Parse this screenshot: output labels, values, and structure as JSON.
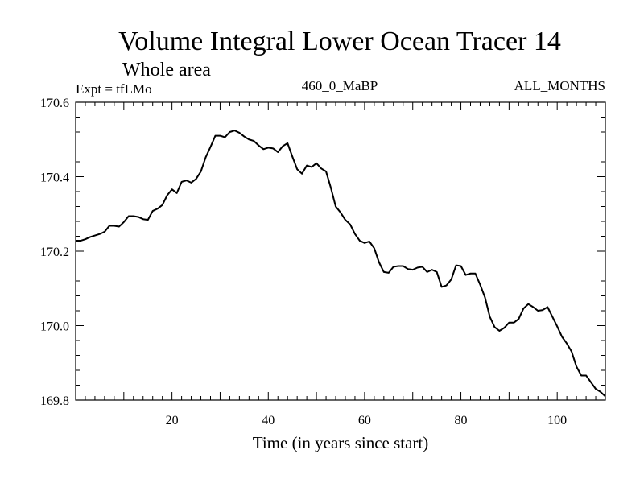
{
  "chart_data": {
    "type": "line",
    "title": "Volume Integral Lower Ocean Tracer 14",
    "subtitle": "Whole area",
    "experiment_label": "Expt = tfLMo",
    "period_label": "460_0_MaBP",
    "months_label": "ALL_MONTHS",
    "xlabel": "Time (in years since start)",
    "ylabel": "",
    "xlim": [
      0,
      110
    ],
    "ylim": [
      169.8,
      170.6
    ],
    "x_ticks": [
      20,
      40,
      60,
      80,
      100
    ],
    "x_tick_labels": [
      "20",
      "40",
      "60",
      "80",
      "100"
    ],
    "y_ticks": [
      169.8,
      170.0,
      170.2,
      170.4,
      170.6
    ],
    "y_tick_labels": [
      "169.8",
      "170.0",
      "170.2",
      "170.4",
      "170.6"
    ],
    "grid": false,
    "series": [
      {
        "name": "tfLMo",
        "x": [
          0,
          1,
          2,
          3,
          4,
          5,
          6,
          7,
          8,
          9,
          10,
          11,
          12,
          13,
          14,
          15,
          16,
          17,
          18,
          19,
          20,
          21,
          22,
          23,
          24,
          25,
          26,
          27,
          28,
          29,
          30,
          31,
          32,
          33,
          34,
          35,
          36,
          37,
          38,
          39,
          40,
          41,
          42,
          43,
          44,
          45,
          46,
          47,
          48,
          49,
          50,
          51,
          52,
          53,
          54,
          55,
          56,
          57,
          58,
          59,
          60,
          61,
          62,
          63,
          64,
          65,
          66,
          67,
          68,
          69,
          70,
          71,
          72,
          73,
          74,
          75,
          76,
          77,
          78,
          79,
          80,
          81,
          82,
          83,
          84,
          85,
          86,
          87,
          88,
          89,
          90,
          91,
          92,
          93,
          94,
          95,
          96,
          97,
          98,
          99,
          100,
          101,
          102,
          103,
          104,
          105,
          106,
          107,
          108,
          109,
          110
        ],
        "y": [
          170.228,
          170.228,
          170.232,
          170.238,
          170.242,
          170.246,
          170.252,
          170.268,
          170.268,
          170.266,
          170.278,
          170.294,
          170.294,
          170.292,
          170.286,
          170.284,
          170.308,
          170.314,
          170.324,
          170.35,
          170.366,
          170.356,
          170.386,
          170.39,
          170.384,
          170.394,
          170.414,
          170.452,
          170.48,
          170.51,
          170.51,
          170.506,
          170.52,
          170.524,
          170.518,
          170.508,
          170.5,
          170.496,
          170.484,
          170.474,
          170.478,
          170.476,
          170.466,
          170.482,
          170.49,
          170.454,
          170.42,
          170.408,
          170.43,
          170.426,
          170.436,
          170.422,
          170.414,
          170.37,
          170.32,
          170.304,
          170.284,
          170.272,
          170.246,
          170.228,
          170.222,
          170.226,
          170.208,
          170.17,
          170.144,
          170.142,
          170.158,
          170.16,
          170.16,
          170.152,
          170.15,
          170.156,
          170.158,
          170.144,
          170.15,
          170.144,
          170.104,
          170.108,
          170.124,
          170.162,
          170.16,
          170.136,
          170.14,
          170.14,
          170.11,
          170.076,
          170.024,
          169.996,
          169.986,
          169.994,
          170.008,
          170.008,
          170.018,
          170.046,
          170.058,
          170.05,
          170.04,
          170.042,
          170.05,
          170.024,
          169.998,
          169.97,
          169.952,
          169.93,
          169.89,
          169.866,
          169.866,
          169.848,
          169.83,
          169.822,
          169.81
        ]
      }
    ]
  }
}
